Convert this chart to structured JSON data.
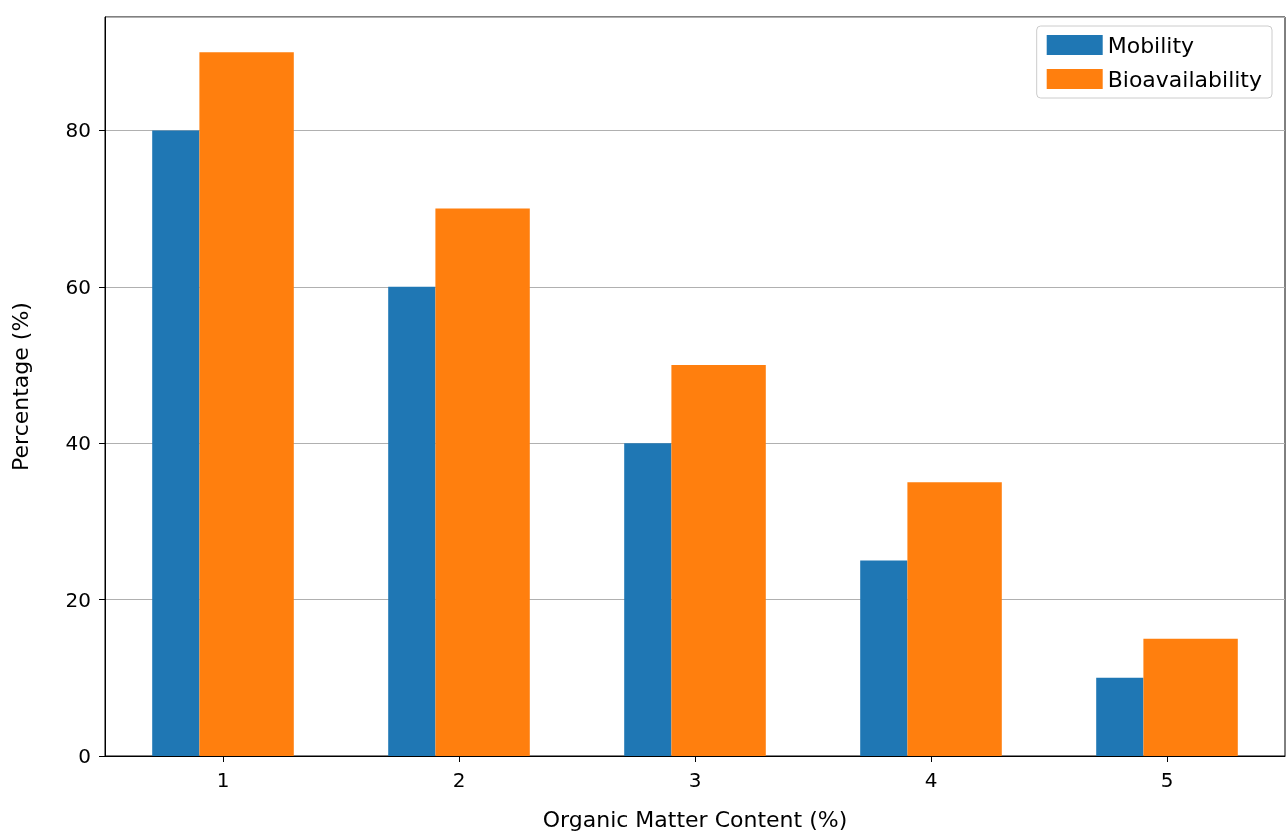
{
  "chart_data": {
    "type": "bar",
    "xlabel": "Organic Matter Content (%)",
    "ylabel": "Percentage (%)",
    "categories": [
      "1",
      "2",
      "3",
      "4",
      "5"
    ],
    "series": [
      {
        "name": "Mobility",
        "color": "#1f77b4",
        "values": [
          80,
          60,
          40,
          25,
          10
        ]
      },
      {
        "name": "Bioavailability",
        "color": "#ff7f0e",
        "values": [
          90,
          70,
          50,
          35,
          15
        ]
      }
    ],
    "ylim": [
      0,
      94.5
    ],
    "yticks": [
      0,
      20,
      40,
      60,
      80
    ],
    "grid": "y",
    "legend": "top right"
  }
}
